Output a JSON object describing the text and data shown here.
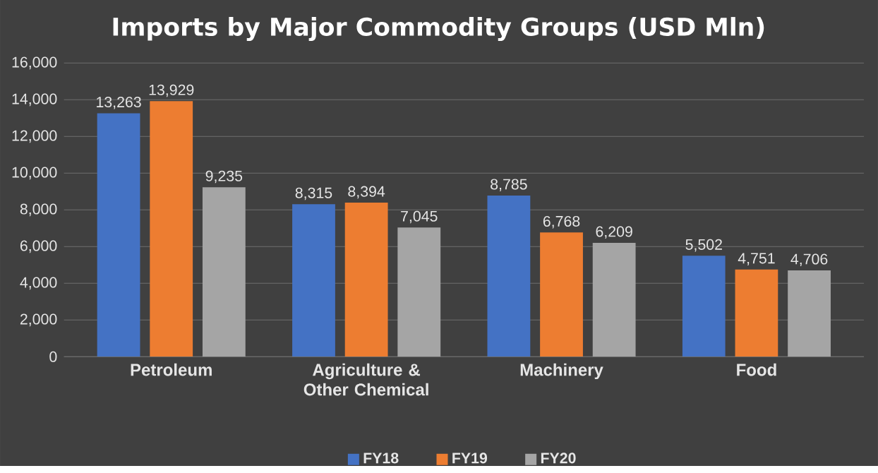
{
  "chart_data": {
    "type": "bar",
    "title": "Imports by Major Commodity Groups (USD Mln)",
    "categories": [
      "Petroleum",
      "Agriculture & Other Chemical",
      "Machinery",
      "Food"
    ],
    "series": [
      {
        "name": "FY18",
        "color": "#4472c4",
        "values": [
          13263,
          8315,
          8785,
          5502
        ],
        "value_labels": [
          "13,263",
          "8,315",
          "8,785",
          "5,502"
        ]
      },
      {
        "name": "FY19",
        "color": "#ed7d31",
        "values": [
          13929,
          8394,
          6768,
          4751
        ],
        "value_labels": [
          "13,929",
          "8,394",
          "6,768",
          "4,751"
        ]
      },
      {
        "name": "FY20",
        "color": "#a5a5a5",
        "values": [
          9235,
          7045,
          6209,
          4706
        ],
        "value_labels": [
          "9,235",
          "7,045",
          "6,209",
          "4,706"
        ]
      }
    ],
    "ylim": [
      0,
      16000
    ],
    "yticks": [
      {
        "value": 0,
        "label": "0"
      },
      {
        "value": 2000,
        "label": "2,000"
      },
      {
        "value": 4000,
        "label": "4,000"
      },
      {
        "value": 6000,
        "label": "6,000"
      },
      {
        "value": 8000,
        "label": "8,000"
      },
      {
        "value": 10000,
        "label": "10,000"
      },
      {
        "value": 12000,
        "label": "12,000"
      },
      {
        "value": 14000,
        "label": "14,000"
      },
      {
        "value": 16000,
        "label": "16,000"
      }
    ],
    "grid": "y",
    "legend": "bottom"
  }
}
